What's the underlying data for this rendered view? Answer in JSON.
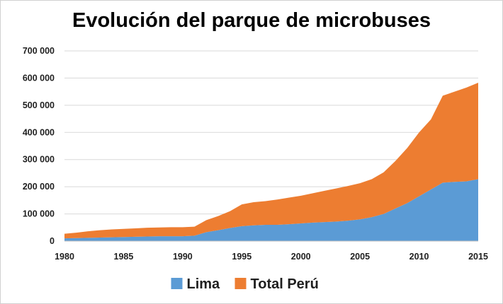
{
  "chart_data": {
    "type": "area",
    "stacked": true,
    "title": "Evolución del parque de microbuses",
    "xlabel": "",
    "ylabel": "",
    "xlim": [
      1980,
      2015
    ],
    "ylim": [
      0,
      700000
    ],
    "x_ticks": [
      1980,
      1985,
      1990,
      1995,
      2000,
      2005,
      2010,
      2015
    ],
    "x_tick_labels": [
      "1980",
      "1985",
      "1990",
      "1995",
      "2000",
      "2005",
      "2010",
      "2015"
    ],
    "y_ticks": [
      0,
      100000,
      200000,
      300000,
      400000,
      500000,
      600000,
      700000
    ],
    "y_tick_labels": [
      "0",
      "100 000",
      "200 000",
      "300 000",
      "400 000",
      "500 000",
      "600 000",
      "700 000"
    ],
    "grid": true,
    "legend_position": "bottom",
    "x": [
      1980,
      1981,
      1982,
      1983,
      1984,
      1985,
      1986,
      1987,
      1988,
      1989,
      1990,
      1991,
      1992,
      1993,
      1994,
      1995,
      1996,
      1997,
      1998,
      1999,
      2000,
      2001,
      2002,
      2003,
      2004,
      2005,
      2006,
      2007,
      2008,
      2009,
      2010,
      2011,
      2012,
      2013,
      2014,
      2015
    ],
    "series": [
      {
        "name": "Lima",
        "color": "#5b9bd5",
        "values": [
          10000,
          11000,
          12000,
          13000,
          14000,
          15000,
          16000,
          17000,
          18000,
          18000,
          18000,
          20000,
          33000,
          40000,
          48000,
          55000,
          58000,
          60000,
          60000,
          62000,
          65000,
          68000,
          70000,
          72000,
          75000,
          80000,
          88000,
          100000,
          120000,
          140000,
          165000,
          190000,
          215000,
          218000,
          220000,
          228000
        ]
      },
      {
        "name": "Total Perú",
        "color": "#ed7d31",
        "values": [
          17000,
          20000,
          24000,
          27000,
          29000,
          30000,
          31000,
          32000,
          32000,
          33000,
          33000,
          33000,
          44000,
          52000,
          62000,
          80000,
          85000,
          87000,
          93000,
          98000,
          102000,
          108000,
          115000,
          122000,
          128000,
          133000,
          140000,
          153000,
          175000,
          203000,
          235000,
          258000,
          320000,
          332000,
          345000,
          355000
        ]
      }
    ]
  }
}
